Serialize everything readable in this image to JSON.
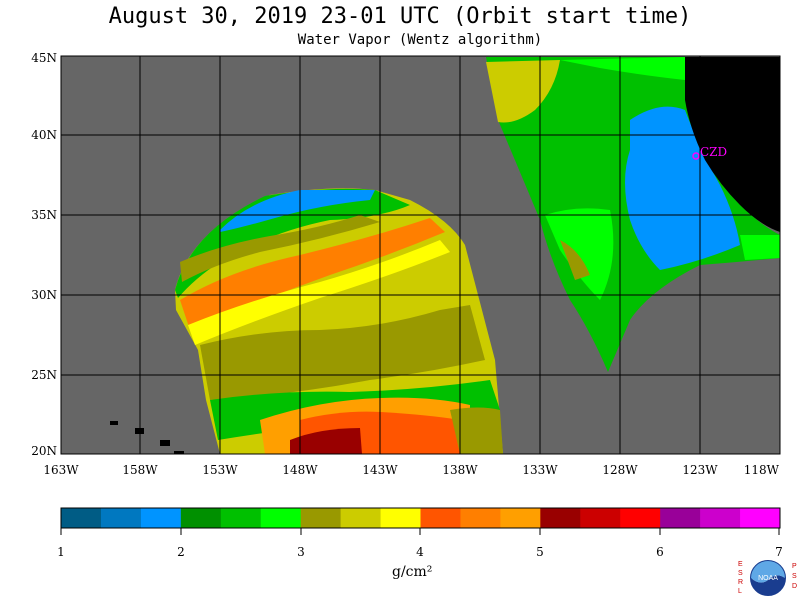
{
  "header": {
    "title": "August 30, 2019  23-01 UTC  (Orbit start time)",
    "subtitle": "Water Vapor (Wentz algorithm)"
  },
  "map": {
    "lat_labels": [
      "45N",
      "40N",
      "35N",
      "30N",
      "25N",
      "20N"
    ],
    "lon_labels": [
      "163W",
      "158W",
      "153W",
      "148W",
      "143W",
      "138W",
      "133W",
      "128W",
      "123W",
      "118W"
    ],
    "station_label": "CZD",
    "colors": {
      "no_data": "#666666",
      "land": "#000000",
      "grid": "#000000",
      "station": "#ff00ff"
    }
  },
  "colorbar": {
    "tick_labels": [
      "1",
      "2",
      "3",
      "4",
      "5",
      "6",
      "7"
    ],
    "unit": "g/cm²",
    "colors": [
      "#005c85",
      "#0078c0",
      "#0094ff",
      "#009000",
      "#00c000",
      "#00ff00",
      "#999900",
      "#cccc00",
      "#ffff00",
      "#ff5500",
      "#ff7f00",
      "#ff9f00",
      "#990000",
      "#cc0000",
      "#ff0000",
      "#990099",
      "#cc00cc",
      "#ff00ff"
    ]
  },
  "logo": {
    "left_letters": "ESRL",
    "right_letters": "PSD",
    "center_text": "NOAA"
  }
}
